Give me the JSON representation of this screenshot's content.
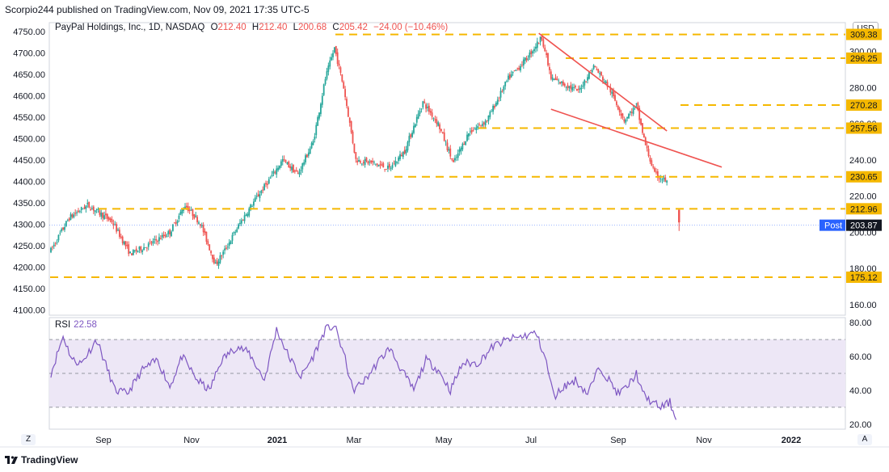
{
  "header": {
    "publisher": "Scorpio244 published on TradingView.com, Nov 09, 2021 17:35 UTC-5"
  },
  "legend": {
    "symbol": "PayPal Holdings, Inc., 1D, NASDAQ",
    "o_label": "O",
    "o_value": "212.40",
    "h_label": "H",
    "h_value": "212.40",
    "l_label": "L",
    "l_value": "200.68",
    "c_label": "C",
    "c_value": "205.42",
    "change": "−24.00 (−10.46%)"
  },
  "currency": "USD",
  "rsi": {
    "label": "RSI",
    "value": "22.58"
  },
  "footer": {
    "brand": "TradingView"
  },
  "corner_left": "Z",
  "corner_right": "A",
  "colors": {
    "up": "#26a69a",
    "down": "#ef5350",
    "level": "#f5b800",
    "trend": "#ef5350",
    "rsi_line": "#7e57c2",
    "rsi_band": "#ede7f6",
    "badge": "#131722",
    "post": "#2962ff"
  },
  "chart_data": [
    {
      "type": "candlestick",
      "title": "PayPal Holdings, Inc., 1D, NASDAQ",
      "left_axis_ticks": [
        "4750.00",
        "4700.00",
        "4650.00",
        "4600.00",
        "4550.00",
        "4500.00",
        "4450.00",
        "4400.00",
        "4350.00",
        "4300.00",
        "4250.00",
        "4200.00",
        "4150.00",
        "4100.00"
      ],
      "right_axis_ticks": [
        "300.00",
        "280.00",
        "260.00",
        "240.00",
        "220.00",
        "200.00",
        "180.00",
        "160.00"
      ],
      "y_range_price": [
        155,
        315
      ],
      "x_labels": [
        "Sep",
        "Nov",
        "2021",
        "Mar",
        "May",
        "Jul",
        "Sep",
        "Nov",
        "2022"
      ],
      "price_anchors": [
        {
          "t": 0,
          "v": 190
        },
        {
          "t": 12,
          "v": 208
        },
        {
          "t": 24,
          "v": 215
        },
        {
          "t": 40,
          "v": 206
        },
        {
          "t": 52,
          "v": 188
        },
        {
          "t": 64,
          "v": 193
        },
        {
          "t": 78,
          "v": 200
        },
        {
          "t": 88,
          "v": 215
        },
        {
          "t": 98,
          "v": 205
        },
        {
          "t": 108,
          "v": 182
        },
        {
          "t": 114,
          "v": 190
        },
        {
          "t": 124,
          "v": 205
        },
        {
          "t": 134,
          "v": 218
        },
        {
          "t": 144,
          "v": 230
        },
        {
          "t": 152,
          "v": 240
        },
        {
          "t": 162,
          "v": 232
        },
        {
          "t": 172,
          "v": 250
        },
        {
          "t": 180,
          "v": 285
        },
        {
          "t": 186,
          "v": 302
        },
        {
          "t": 192,
          "v": 280
        },
        {
          "t": 200,
          "v": 240
        },
        {
          "t": 212,
          "v": 238
        },
        {
          "t": 222,
          "v": 235
        },
        {
          "t": 232,
          "v": 245
        },
        {
          "t": 244,
          "v": 272
        },
        {
          "t": 254,
          "v": 260
        },
        {
          "t": 264,
          "v": 238
        },
        {
          "t": 274,
          "v": 255
        },
        {
          "t": 286,
          "v": 262
        },
        {
          "t": 300,
          "v": 285
        },
        {
          "t": 312,
          "v": 296
        },
        {
          "t": 322,
          "v": 308
        },
        {
          "t": 328,
          "v": 285
        },
        {
          "t": 336,
          "v": 282
        },
        {
          "t": 346,
          "v": 278
        },
        {
          "t": 356,
          "v": 292
        },
        {
          "t": 366,
          "v": 280
        },
        {
          "t": 376,
          "v": 262
        },
        {
          "t": 384,
          "v": 270
        },
        {
          "t": 390,
          "v": 248
        },
        {
          "t": 396,
          "v": 232
        },
        {
          "t": 404,
          "v": 228
        }
      ],
      "gap_candle": {
        "o": 212.4,
        "h": 212.4,
        "l": 200.68,
        "c": 205.42
      },
      "support_resistance_levels": [
        309.38,
        296.25,
        270.28,
        257.56,
        230.65,
        212.96,
        175.12
      ],
      "level_labels": [
        "309.38",
        "296.25",
        "270.28",
        "257.56",
        "230.65",
        "212.96",
        "175.12"
      ],
      "post_market": {
        "label": "Post",
        "value": "203.87",
        "price": 203.87
      },
      "trendlines": [
        {
          "from": {
            "t": 320,
            "v": 310
          },
          "to": {
            "t": 404,
            "v": 256
          }
        },
        {
          "from": {
            "t": 328,
            "v": 268
          },
          "to": {
            "t": 440,
            "v": 236
          }
        }
      ]
    },
    {
      "type": "line",
      "title": "RSI",
      "current_value": 22.58,
      "y_ticks": [
        "80.00",
        "60.00",
        "40.00",
        "20.00"
      ],
      "y_range": [
        18,
        82
      ],
      "band": [
        30,
        70
      ],
      "midline": 50,
      "anchors": [
        {
          "t": 0,
          "v": 50
        },
        {
          "t": 8,
          "v": 72
        },
        {
          "t": 14,
          "v": 58
        },
        {
          "t": 20,
          "v": 56
        },
        {
          "t": 30,
          "v": 70
        },
        {
          "t": 36,
          "v": 55
        },
        {
          "t": 42,
          "v": 40
        },
        {
          "t": 50,
          "v": 38
        },
        {
          "t": 60,
          "v": 52
        },
        {
          "t": 70,
          "v": 58
        },
        {
          "t": 78,
          "v": 42
        },
        {
          "t": 86,
          "v": 60
        },
        {
          "t": 96,
          "v": 46
        },
        {
          "t": 104,
          "v": 40
        },
        {
          "t": 112,
          "v": 58
        },
        {
          "t": 122,
          "v": 66
        },
        {
          "t": 130,
          "v": 62
        },
        {
          "t": 140,
          "v": 46
        },
        {
          "t": 148,
          "v": 76
        },
        {
          "t": 156,
          "v": 60
        },
        {
          "t": 164,
          "v": 48
        },
        {
          "t": 172,
          "v": 60
        },
        {
          "t": 180,
          "v": 76
        },
        {
          "t": 186,
          "v": 78
        },
        {
          "t": 192,
          "v": 62
        },
        {
          "t": 198,
          "v": 40
        },
        {
          "t": 206,
          "v": 46
        },
        {
          "t": 214,
          "v": 56
        },
        {
          "t": 222,
          "v": 65
        },
        {
          "t": 230,
          "v": 52
        },
        {
          "t": 238,
          "v": 40
        },
        {
          "t": 246,
          "v": 58
        },
        {
          "t": 254,
          "v": 52
        },
        {
          "t": 262,
          "v": 40
        },
        {
          "t": 270,
          "v": 56
        },
        {
          "t": 280,
          "v": 56
        },
        {
          "t": 290,
          "v": 66
        },
        {
          "t": 300,
          "v": 70
        },
        {
          "t": 310,
          "v": 72
        },
        {
          "t": 318,
          "v": 74
        },
        {
          "t": 324,
          "v": 60
        },
        {
          "t": 330,
          "v": 36
        },
        {
          "t": 336,
          "v": 42
        },
        {
          "t": 344,
          "v": 46
        },
        {
          "t": 352,
          "v": 38
        },
        {
          "t": 360,
          "v": 54
        },
        {
          "t": 366,
          "v": 46
        },
        {
          "t": 372,
          "v": 38
        },
        {
          "t": 378,
          "v": 42
        },
        {
          "t": 384,
          "v": 50
        },
        {
          "t": 388,
          "v": 38
        },
        {
          "t": 394,
          "v": 33
        },
        {
          "t": 400,
          "v": 30
        },
        {
          "t": 406,
          "v": 33
        },
        {
          "t": 410,
          "v": 22.58
        }
      ]
    }
  ]
}
